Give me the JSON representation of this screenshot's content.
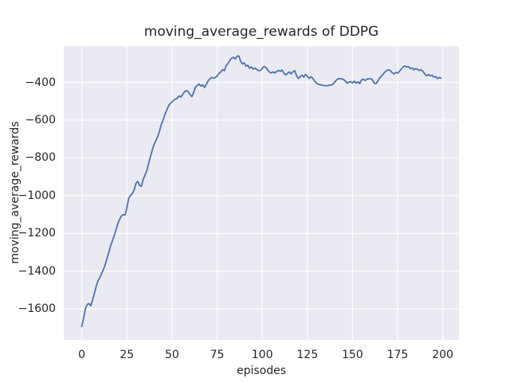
{
  "chart_data": {
    "type": "line",
    "title": "moving_average_rewards of DDPG",
    "xlabel": "episodes",
    "ylabel": "moving_average_rewards",
    "x_ticks": [
      0,
      25,
      50,
      75,
      100,
      125,
      150,
      175,
      200
    ],
    "y_ticks": [
      -400,
      -600,
      -800,
      -1000,
      -1200,
      -1400,
      -1600
    ],
    "xlim": [
      -10,
      209
    ],
    "ylim": [
      -1763,
      -208
    ],
    "grid": true,
    "x_start": 0,
    "x_step": 1,
    "values": [
      -1692,
      -1650,
      -1598,
      -1576,
      -1571,
      -1583,
      -1551,
      -1516,
      -1479,
      -1450,
      -1434,
      -1411,
      -1390,
      -1365,
      -1330,
      -1299,
      -1264,
      -1237,
      -1210,
      -1178,
      -1148,
      -1124,
      -1106,
      -1100,
      -1102,
      -1063,
      -1013,
      -998,
      -988,
      -970,
      -935,
      -924,
      -945,
      -950,
      -914,
      -891,
      -868,
      -830,
      -795,
      -760,
      -730,
      -710,
      -688,
      -660,
      -625,
      -600,
      -572,
      -548,
      -525,
      -512,
      -503,
      -494,
      -488,
      -483,
      -471,
      -477,
      -462,
      -449,
      -443,
      -450,
      -464,
      -475,
      -452,
      -424,
      -416,
      -408,
      -420,
      -413,
      -427,
      -410,
      -392,
      -380,
      -373,
      -378,
      -374,
      -366,
      -352,
      -345,
      -332,
      -338,
      -311,
      -300,
      -283,
      -272,
      -267,
      -276,
      -262,
      -260,
      -288,
      -302,
      -296,
      -314,
      -309,
      -325,
      -318,
      -330,
      -324,
      -332,
      -338,
      -336,
      -325,
      -316,
      -321,
      -334,
      -346,
      -350,
      -344,
      -350,
      -341,
      -336,
      -341,
      -334,
      -351,
      -361,
      -352,
      -344,
      -355,
      -344,
      -338,
      -365,
      -379,
      -369,
      -362,
      -372,
      -357,
      -369,
      -379,
      -370,
      -379,
      -393,
      -403,
      -410,
      -412,
      -414,
      -416,
      -417,
      -418,
      -415,
      -414,
      -411,
      -400,
      -388,
      -381,
      -380,
      -382,
      -384,
      -393,
      -404,
      -398,
      -396,
      -403,
      -393,
      -404,
      -397,
      -407,
      -387,
      -383,
      -390,
      -382,
      -381,
      -379,
      -386,
      -404,
      -407,
      -393,
      -377,
      -366,
      -356,
      -344,
      -337,
      -333,
      -337,
      -349,
      -355,
      -347,
      -351,
      -341,
      -330,
      -318,
      -313,
      -318,
      -316,
      -327,
      -323,
      -333,
      -327,
      -331,
      -337,
      -333,
      -341,
      -355,
      -365,
      -358,
      -365,
      -361,
      -372,
      -369,
      -379,
      -374,
      -378
    ],
    "style": {
      "figure_background": "#ffffff",
      "plot_background": "#eaeaf2",
      "grid_color": "#ffffff",
      "line_color": "#4c72b0",
      "text_color": "#262626"
    }
  }
}
